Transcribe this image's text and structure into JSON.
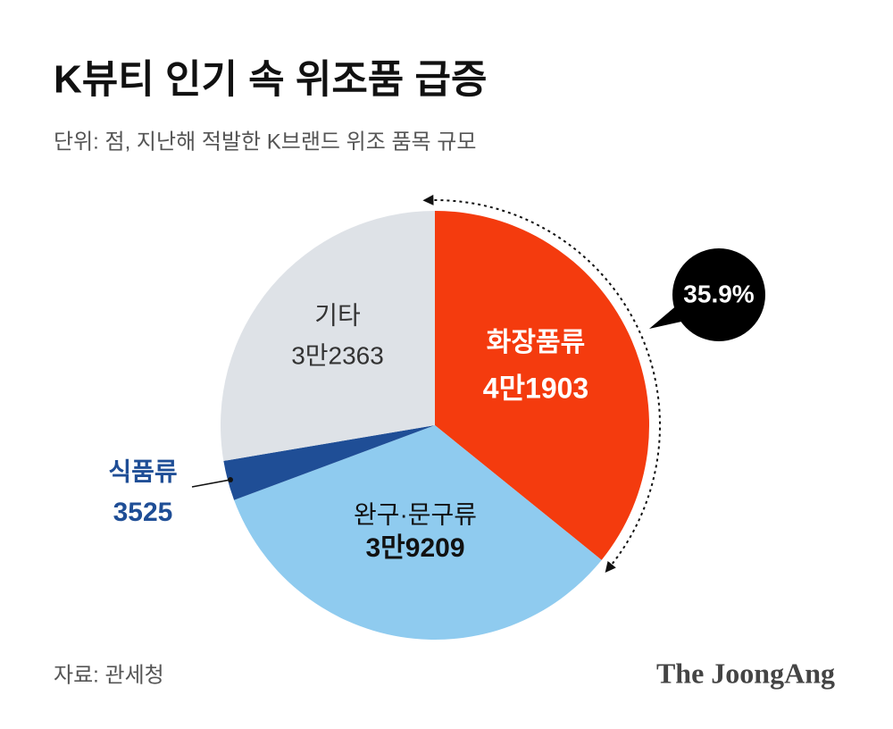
{
  "chart_data": {
    "type": "pie",
    "title": "K뷰티 인기 속 위조품 급증",
    "subtitle": "단위: 점, 지난해 적발한 K브랜드 위조 품목 규모",
    "categories": [
      "화장품류",
      "완구·문구류",
      "식품류",
      "기타"
    ],
    "values": [
      41903,
      39209,
      3525,
      32363
    ],
    "value_labels": [
      "4만1903",
      "3만9209",
      "3525",
      "3만2363"
    ],
    "colors": [
      "#f43b0e",
      "#8fcbef",
      "#1f4e96",
      "#dee2e7"
    ],
    "annotation": "35.9%",
    "source": "자료: 관세청",
    "brand": "The JoongAng"
  }
}
